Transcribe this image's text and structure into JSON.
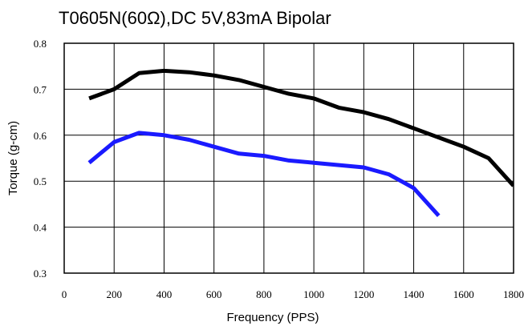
{
  "chart_data": {
    "type": "line",
    "title": "T0605N(60Ω),DC 5V,83mA Bipolar",
    "xlabel": "Frequency (PPS)",
    "ylabel": "Torque (g-cm)",
    "xlim": [
      0,
      1800
    ],
    "ylim": [
      0.3,
      0.8
    ],
    "x_ticks": [
      0,
      200,
      400,
      600,
      800,
      1000,
      1200,
      1400,
      1600,
      1800
    ],
    "y_ticks": [
      0.3,
      0.4,
      0.5,
      0.6,
      0.7,
      0.8
    ],
    "x_tick_labels": [
      "0",
      "200",
      "400",
      "600",
      "800",
      "1000",
      "1200",
      "1400",
      "1600",
      "1800"
    ],
    "y_tick_labels": [
      "0.3",
      "0.4",
      "0.5",
      "0.6",
      "0.7",
      "0.8"
    ],
    "grid": true,
    "legend": "none",
    "series": [
      {
        "color": "#000000",
        "points": [
          [
            100,
            0.68
          ],
          [
            200,
            0.7
          ],
          [
            300,
            0.735
          ],
          [
            400,
            0.74
          ],
          [
            500,
            0.737
          ],
          [
            600,
            0.73
          ],
          [
            700,
            0.72
          ],
          [
            800,
            0.705
          ],
          [
            900,
            0.69
          ],
          [
            1000,
            0.68
          ],
          [
            1100,
            0.66
          ],
          [
            1200,
            0.65
          ],
          [
            1300,
            0.635
          ],
          [
            1400,
            0.615
          ],
          [
            1500,
            0.595
          ],
          [
            1600,
            0.575
          ],
          [
            1700,
            0.55
          ],
          [
            1800,
            0.49
          ]
        ]
      },
      {
        "color": "#1a1aff",
        "points": [
          [
            100,
            0.54
          ],
          [
            200,
            0.585
          ],
          [
            300,
            0.605
          ],
          [
            400,
            0.6
          ],
          [
            500,
            0.59
          ],
          [
            600,
            0.575
          ],
          [
            700,
            0.56
          ],
          [
            800,
            0.555
          ],
          [
            900,
            0.545
          ],
          [
            1000,
            0.54
          ],
          [
            1100,
            0.535
          ],
          [
            1200,
            0.53
          ],
          [
            1300,
            0.515
          ],
          [
            1400,
            0.485
          ],
          [
            1500,
            0.425
          ]
        ]
      }
    ]
  }
}
